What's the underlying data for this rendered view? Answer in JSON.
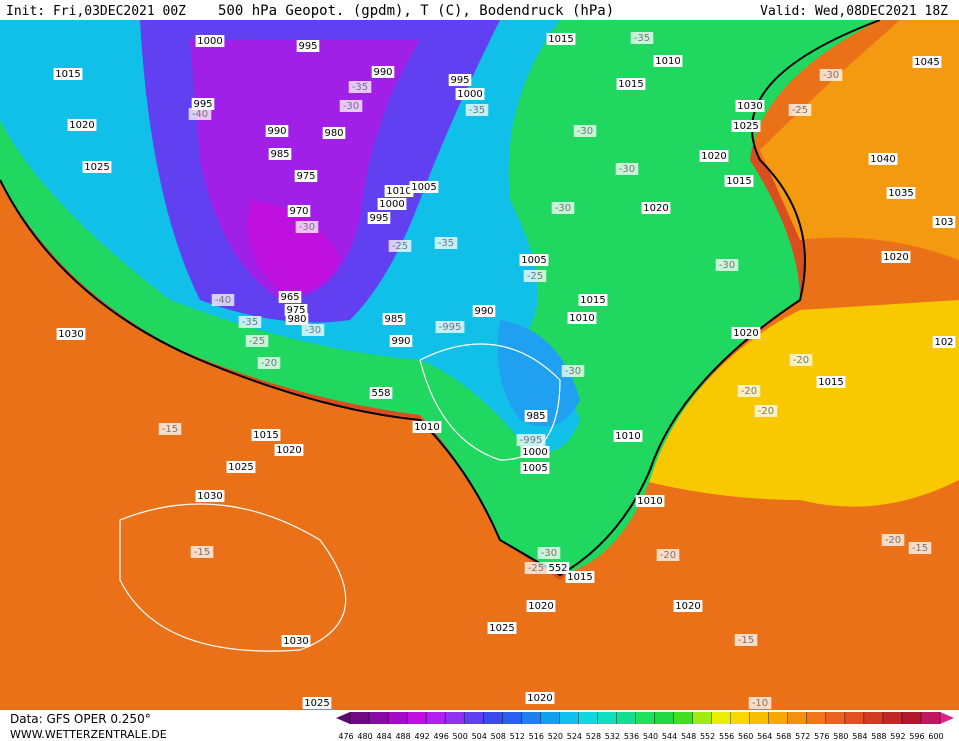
{
  "header": {
    "init": "Init: Fri,03DEC2021 00Z",
    "title": "500 hPa Geopot. (gpdm), T (C), Bodendruck (hPa)",
    "valid": "Valid: Wed,08DEC2021 18Z"
  },
  "footer": {
    "data": "Data: GFS OPER 0.250°",
    "site": "WWW.WETTERZENTRALE.DE"
  },
  "colorbar": {
    "ticks": [
      476,
      480,
      484,
      488,
      492,
      496,
      500,
      504,
      508,
      512,
      516,
      520,
      524,
      528,
      532,
      536,
      540,
      544,
      548,
      552,
      556,
      560,
      564,
      568,
      572,
      576,
      580,
      584,
      588,
      592,
      596,
      600
    ],
    "colors": [
      "#5a0a6e",
      "#6e0a86",
      "#8a0aa6",
      "#a60ac6",
      "#c010e0",
      "#b020f0",
      "#9030f0",
      "#6040f0",
      "#3a4af0",
      "#2a60f0",
      "#2080f0",
      "#10a0f0",
      "#10c0f0",
      "#10d8e0",
      "#10e0c0",
      "#10e090",
      "#20e060",
      "#20d840",
      "#40e020",
      "#a0ec10",
      "#e8f000",
      "#f8d800",
      "#f8c000",
      "#f8a800",
      "#f49010",
      "#f07818",
      "#e86420",
      "#e05020",
      "#d03c20",
      "#c02828",
      "#b01830",
      "#c01860",
      "#e0208a"
    ]
  },
  "labels": [
    "1000",
    "995",
    "1015",
    "990",
    "995",
    "1000",
    "995",
    "-35",
    "-30",
    "-35",
    "-40",
    "1020",
    "990",
    "980",
    "985",
    "1025",
    "975",
    "1010",
    "1005",
    "1000",
    "970",
    "995",
    "-30",
    "-25",
    "-35",
    "1005",
    "-25",
    "-40",
    "965",
    "975",
    "980",
    "-35",
    "-30",
    "-25",
    "1030",
    "985",
    "-995",
    "990",
    "990",
    "-20",
    "558",
    "1010",
    "1015",
    "1020",
    "-15",
    "1025",
    "1030",
    "-15",
    "1030",
    "1025",
    "985",
    "-995",
    "1000",
    "1005",
    "1010",
    "1010",
    "-30",
    "-30",
    "-25",
    "552",
    "1015",
    "1020",
    "1025",
    "1020",
    "-20",
    "-15",
    "1020",
    "-10",
    "1015",
    "-35",
    "1010",
    "1015",
    "-30",
    "1045",
    "1030",
    "-25",
    "-30",
    "1025",
    "1020",
    "-30",
    "1015",
    "1040",
    "1035",
    "1020",
    "-30",
    "-30",
    "1020",
    "1015",
    "1010",
    "1020",
    "-20",
    "1015",
    "-20",
    "-20",
    "-20",
    "-15",
    "103",
    "102"
  ]
}
